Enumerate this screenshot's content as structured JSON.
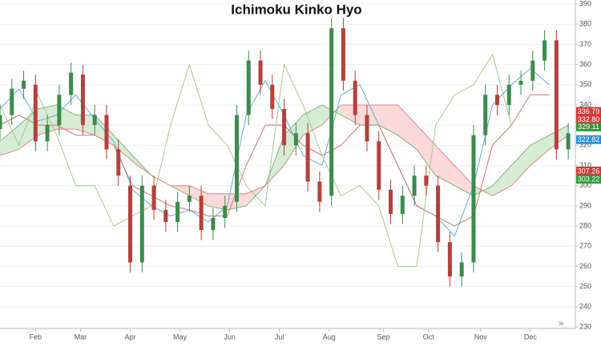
{
  "chart_data": {
    "type": "candlestick",
    "title": "Ichimoku Kinko Hyo",
    "xlim": [
      0,
      243
    ],
    "xticks": [
      {
        "value": 15,
        "label": "Feb"
      },
      {
        "value": 34,
        "label": "Mar"
      },
      {
        "value": 55,
        "label": "Apr"
      },
      {
        "value": 76,
        "label": "May"
      },
      {
        "value": 97,
        "label": "Jun"
      },
      {
        "value": 118,
        "label": "Jul"
      },
      {
        "value": 139,
        "label": "Aug"
      },
      {
        "value": 162,
        "label": "Sep"
      },
      {
        "value": 181,
        "label": "Oct"
      },
      {
        "value": 203,
        "label": "Nov"
      },
      {
        "value": 224,
        "label": "Dec"
      }
    ],
    "ylim": [
      230,
      390
    ],
    "yticks": [
      230,
      240,
      250,
      260,
      270,
      280,
      290,
      300,
      310,
      320,
      330,
      340,
      350,
      360,
      370,
      380,
      390
    ],
    "grid": true,
    "up_color": "#3d8a4e",
    "down_color": "#b5403c",
    "x": [
      0,
      5,
      10,
      15,
      20,
      25,
      30,
      35,
      40,
      45,
      50,
      55,
      60,
      65,
      70,
      75,
      80,
      85,
      90,
      95,
      100,
      105,
      110,
      115,
      120,
      125,
      130,
      135,
      140,
      145,
      150,
      155,
      160,
      165,
      170,
      175,
      180,
      185,
      190,
      195,
      200,
      205,
      210,
      215,
      220,
      225,
      230,
      235,
      240
    ],
    "open": [
      328,
      335,
      348,
      350,
      322,
      330,
      345,
      355,
      330,
      335,
      318,
      300,
      262,
      300,
      288,
      282,
      292,
      295,
      278,
      284,
      292,
      335,
      362,
      350,
      338,
      320,
      326,
      302,
      295,
      378,
      352,
      335,
      322,
      298,
      286,
      295,
      305,
      300,
      272,
      255,
      262,
      325,
      345,
      340,
      350,
      352,
      362,
      372,
      318
    ],
    "high": [
      340,
      353,
      357,
      355,
      335,
      350,
      361,
      360,
      340,
      340,
      323,
      305,
      305,
      305,
      293,
      297,
      300,
      300,
      289,
      295,
      340,
      367,
      367,
      355,
      343,
      331,
      331,
      307,
      383,
      383,
      357,
      340,
      327,
      303,
      300,
      310,
      310,
      305,
      277,
      267,
      330,
      350,
      350,
      355,
      357,
      367,
      377,
      377,
      331
    ],
    "low": [
      323,
      330,
      343,
      317,
      317,
      325,
      340,
      325,
      325,
      313,
      300,
      257,
      257,
      283,
      277,
      277,
      287,
      273,
      273,
      279,
      287,
      330,
      345,
      333,
      315,
      315,
      297,
      287,
      290,
      347,
      330,
      317,
      293,
      281,
      281,
      290,
      295,
      267,
      250,
      250,
      257,
      320,
      335,
      335,
      345,
      347,
      357,
      313,
      313
    ],
    "close": [
      335,
      348,
      352,
      322,
      330,
      345,
      356,
      330,
      335,
      318,
      305,
      262,
      300,
      288,
      282,
      292,
      295,
      278,
      284,
      290,
      335,
      362,
      350,
      338,
      320,
      326,
      302,
      292,
      378,
      352,
      335,
      322,
      298,
      286,
      295,
      305,
      300,
      272,
      255,
      262,
      325,
      345,
      340,
      350,
      352,
      362,
      372,
      318,
      326
    ],
    "line_x": [
      0,
      8,
      16,
      24,
      32,
      40,
      48,
      56,
      64,
      72,
      80,
      88,
      96,
      104,
      112,
      120,
      128,
      136,
      144,
      152,
      160,
      168,
      176,
      184,
      192,
      200,
      208,
      216,
      224,
      232,
      240
    ],
    "cloud": {
      "up_color": "#d6ecd4",
      "down_color": "#fbd9d9"
    },
    "lines": [
      {
        "color": "#5fb0dc",
        "values": [
          338,
          348,
          332,
          335,
          345,
          333,
          322,
          298,
          290,
          285,
          288,
          282,
          290,
          335,
          352,
          335,
          315,
          310,
          345,
          350,
          330,
          310,
          290,
          285,
          275,
          300,
          340,
          350,
          358,
          350,
          null
        ]
      },
      {
        "color": "#c97a70",
        "values": [
          330,
          335,
          330,
          330,
          325,
          325,
          320,
          300,
          295,
          290,
          288,
          285,
          285,
          310,
          330,
          330,
          320,
          315,
          320,
          330,
          330,
          310,
          290,
          285,
          280,
          285,
          320,
          330,
          345,
          345,
          null
        ]
      },
      {
        "color": "#a9c98e",
        "values": [
          340,
          320,
          345,
          325,
          300,
          300,
          280,
          285,
          290,
          330,
          360,
          330,
          320,
          300,
          290,
          360,
          340,
          315,
          295,
          300,
          290,
          260,
          260,
          330,
          345,
          350,
          365,
          330,
          null,
          null,
          null
        ]
      },
      {
        "color": "#7fb67f",
        "values": [
          322,
          330,
          338,
          340,
          335,
          335,
          325,
          315,
          305,
          300,
          295,
          290,
          288,
          290,
          300,
          325,
          335,
          340,
          335,
          330,
          330,
          325,
          318,
          305,
          300,
          295,
          300,
          310,
          320,
          325,
          330
        ]
      },
      {
        "color": "#e08a8a",
        "values": [
          315,
          318,
          325,
          328,
          328,
          325,
          320,
          312,
          305,
          300,
          300,
          296,
          296,
          296,
          300,
          310,
          325,
          330,
          340,
          340,
          340,
          340,
          330,
          320,
          310,
          300,
          295,
          300,
          310,
          318,
          325
        ]
      }
    ],
    "price_tags": {
      "values": [
        336.79,
        332.8,
        329.11,
        322.82,
        307.26,
        303.22
      ],
      "value_labels": [
        "336.79",
        "332.80",
        "329.11",
        "322.82",
        "307.26",
        "303.22"
      ],
      "colors": [
        "#d03a3a",
        "#d03a3a",
        "#2e9a3a",
        "#2a8fd6",
        "#d03a3a",
        "#2e9a3a"
      ]
    }
  }
}
